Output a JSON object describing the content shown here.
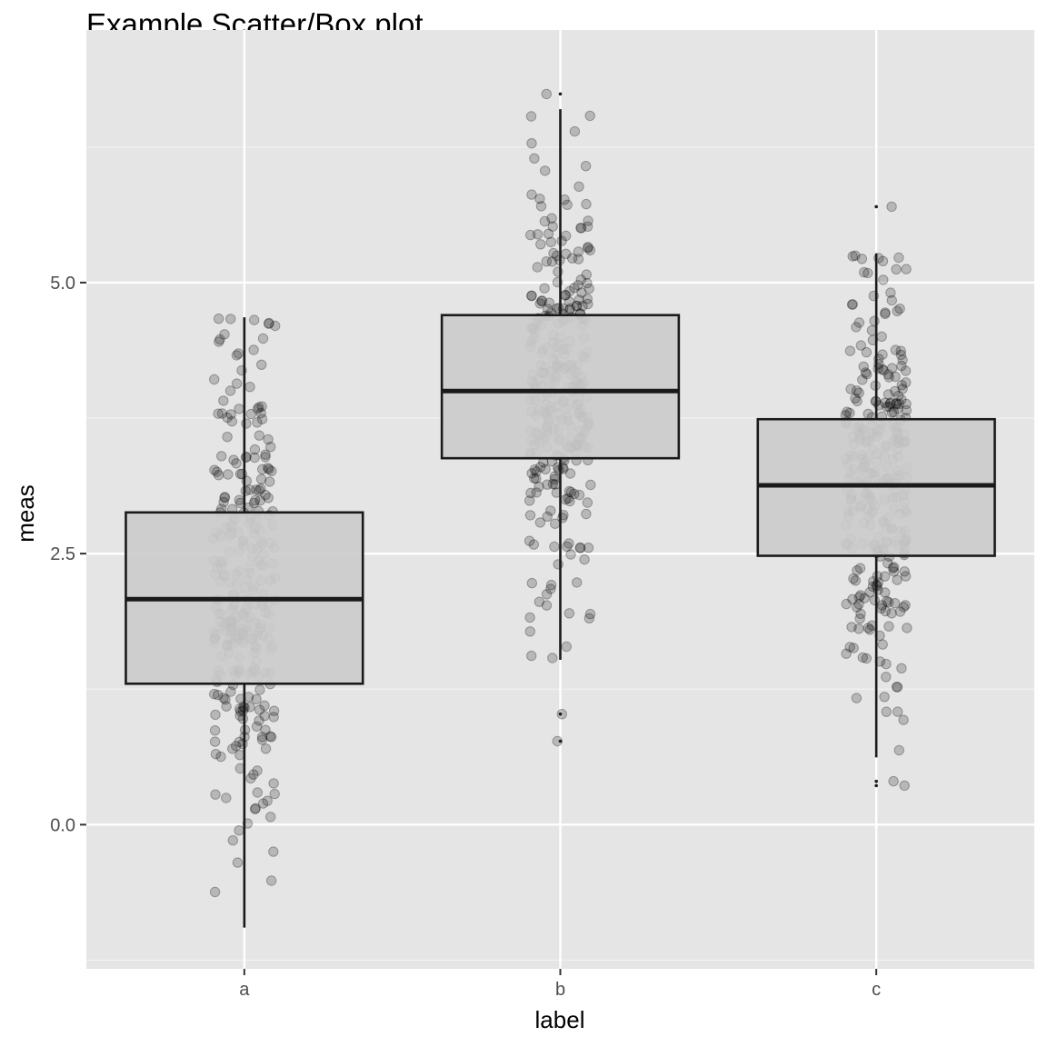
{
  "chart_data": {
    "type": "box",
    "title": "Example Scatter/Box plot",
    "xlabel": "label",
    "ylabel": "meas",
    "categories": [
      "a",
      "b",
      "c"
    ],
    "y_ticks": [
      {
        "value": 0.0,
        "label": "0.0"
      },
      {
        "value": 2.5,
        "label": "2.5"
      },
      {
        "value": 5.0,
        "label": "5.0"
      }
    ],
    "ylim": [
      -1.33,
      7.33
    ],
    "grid": true,
    "panel_background": "#e5e5e5",
    "box_fill": "#cccccc",
    "point_color": "#000000",
    "point_alpha": 0.2,
    "n_points_per_group": 300,
    "boxes": [
      {
        "category": "a",
        "whisker_low": -0.95,
        "q1": 1.3,
        "median": 2.08,
        "q3": 2.88,
        "whisker_high": 4.68,
        "outliers": []
      },
      {
        "category": "b",
        "whisker_low": 1.52,
        "q1": 3.38,
        "median": 4.0,
        "q3": 4.7,
        "whisker_high": 6.6,
        "outliers": [
          0.77,
          1.02,
          6.74
        ]
      },
      {
        "category": "c",
        "whisker_low": 0.62,
        "q1": 2.48,
        "median": 3.13,
        "q3": 3.74,
        "whisker_high": 5.27,
        "outliers": [
          0.36,
          0.4,
          5.7
        ]
      }
    ]
  }
}
